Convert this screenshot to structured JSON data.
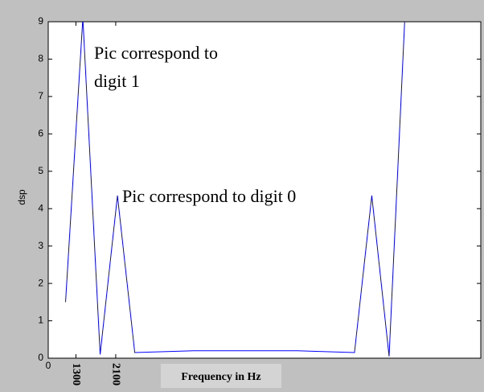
{
  "chart_data": {
    "type": "line",
    "y_label": "dsp",
    "x_label": "Frequency in Hz",
    "annotations": [
      [
        "Pic correspond to",
        "digit 1"
      ],
      [
        "Pic correspond to digit 0"
      ]
    ],
    "x": [
      1,
      2,
      3,
      4,
      5,
      8.4,
      14.4,
      17.7,
      18.7,
      19.7,
      20.7
    ],
    "series": [
      {
        "color": "#0000ff",
        "values": [
          1.5,
          9.1,
          0.1,
          4.35,
          0.15,
          0.2,
          0.2,
          0.15,
          4.35,
          0.05,
          10
        ]
      }
    ],
    "xlim": [
      0,
      25
    ],
    "ylim": [
      0,
      9
    ],
    "xticks": [
      0,
      {
        "value": 1.6,
        "label": "1300"
      },
      {
        "value": 3.9,
        "label": "2100"
      }
    ],
    "yticks": [
      0,
      1,
      2,
      3,
      4,
      5,
      6,
      7,
      8,
      9
    ]
  }
}
